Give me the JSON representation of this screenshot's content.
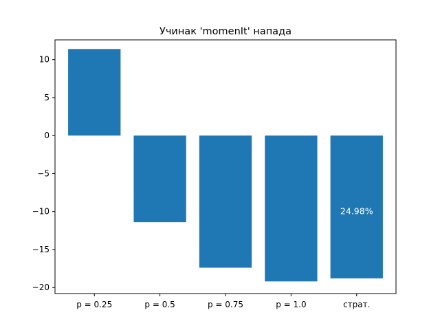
{
  "chart_data": {
    "type": "bar",
    "title": "Учинак 'momenIt' напада",
    "xlabel": "",
    "ylabel": "",
    "categories": [
      "p = 0.25",
      "p = 0.5",
      "p = 0.75",
      "p = 1.0",
      "страт."
    ],
    "values": [
      11.4,
      -11.4,
      -17.4,
      -19.2,
      -18.8
    ],
    "ylim": [
      -20.8,
      12.6
    ],
    "yticks": [
      10,
      5,
      0,
      -5,
      -10,
      -15,
      -20
    ],
    "ytick_labels": [
      "10",
      "5",
      "0",
      "−5",
      "−10",
      "−15",
      "−20"
    ],
    "bar_color": "#1f77b4",
    "annotations": [
      {
        "category": "страт.",
        "text": "24.98%",
        "y": -10,
        "color": "#ffffff"
      }
    ],
    "grid": false,
    "legend": "none"
  }
}
